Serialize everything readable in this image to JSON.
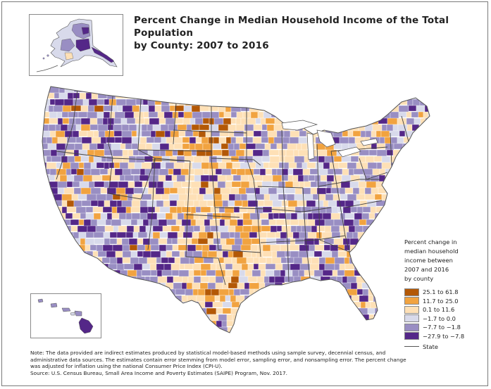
{
  "title": {
    "line1": "Percent Change in Median Household Income of the Total Population",
    "line2": "by County: 2007 to 2016"
  },
  "legend": {
    "title_lines": [
      "Percent change in",
      "median household",
      "income between",
      "2007 and 2016",
      "by county"
    ],
    "classes": [
      {
        "label": "25.1  to  61.8",
        "color": "#b35806"
      },
      {
        "label": "11.7  to  25.0",
        "color": "#f1a340"
      },
      {
        "label": "0.1  to  11.6",
        "color": "#fee0b6"
      },
      {
        "label": "−1.7  to    0.0",
        "color": "#d8daeb"
      },
      {
        "label": "−7.7  to  −1.8",
        "color": "#998ec3"
      },
      {
        "label": "−27.9  to  −7.8",
        "color": "#542788"
      }
    ],
    "state_label": "State"
  },
  "note": {
    "lines": [
      "Note: The data provided are indirect estimates produced by statistical model-based methods using sample survey, decennial census, and",
      "administrative data sources. The estimates contain error stemming from model error, sampling error, and nonsampling error. The percent change",
      "was adjusted for inflation using the national Consumer Price Index (CPI-U).",
      "Source: U.S. Census Bureau, Small Area Income and Poverty Estimates (SAIPE) Program, Nov. 2017."
    ]
  },
  "map": {
    "border_color": "#6e6e6e",
    "ocean_color": "#ffffff"
  }
}
